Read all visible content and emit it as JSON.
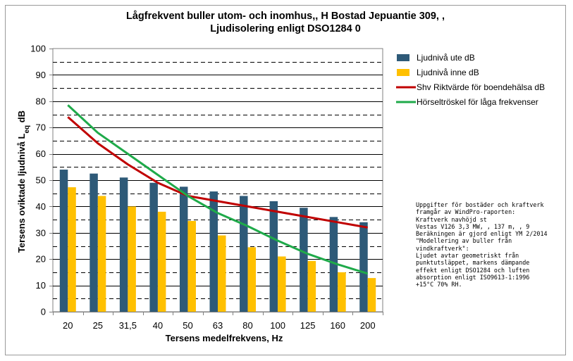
{
  "chart_data": {
    "type": "bar",
    "title": "Lågfrekvent buller utom- och inomhus,, H Bostad Jepuantie 309, ,\nLjudisolering enligt  DSO1284 0",
    "xlabel": "Tersens medelfrekvens, Hz",
    "ylabel_main": "Tersens oviktade ljudnivå L",
    "ylabel_sub": "eq",
    "ylabel_suffix": " dB",
    "ylim": [
      0,
      100
    ],
    "yticks": [
      "0",
      "10",
      "20",
      "30",
      "40",
      "50",
      "60",
      "70",
      "80",
      "90",
      "100"
    ],
    "categories": [
      "20",
      "25",
      "31,5",
      "40",
      "50",
      "63",
      "80",
      "100",
      "125",
      "160",
      "200"
    ],
    "grid": "dashed horizontal",
    "legend_position": "right",
    "series": [
      {
        "name": "Ljudnivå ute dB",
        "kind": "bar",
        "color": "#2e5a78",
        "values": [
          54,
          52.5,
          51,
          49,
          47.5,
          45.7,
          44,
          42,
          39.5,
          36,
          34
        ]
      },
      {
        "name": "Ljudnivå inne dB",
        "kind": "bar",
        "color": "#ffc000",
        "values": [
          47.3,
          44,
          40,
          38,
          34.5,
          29,
          24.5,
          21,
          19.3,
          15,
          12.8
        ]
      },
      {
        "name": "Shv Riktvärde för boendehälsa dB",
        "kind": "line",
        "color": "#c00000",
        "values": [
          74,
          64,
          56,
          49,
          44,
          42,
          40,
          38,
          36,
          34,
          32
        ]
      },
      {
        "name": "Hörseltröskel för låga frekvenser",
        "kind": "line",
        "color": "#1faa4a",
        "values": [
          78.5,
          68,
          60,
          52,
          44,
          37.5,
          32.5,
          27,
          22,
          18,
          14.5
        ]
      }
    ]
  },
  "note": "Uppgifter för bostäder och kraftverk\nframgår av WindPro-raporten:\nKraftverk          navhöjd          st\nVestas V126  3,3  MW, , 137  m, , 9\nBeräkningen är gjord enligt YM 2/2014\n\"Modellering av buller från\nvindkraftverk\":\nLjudet avtar geometriskt från\npunktutsläppet, markens dämpande\neffekt enligt DSO1284 och luften\nabsorption enligt ISO9613-1:1996\n+15°C 70% RH."
}
